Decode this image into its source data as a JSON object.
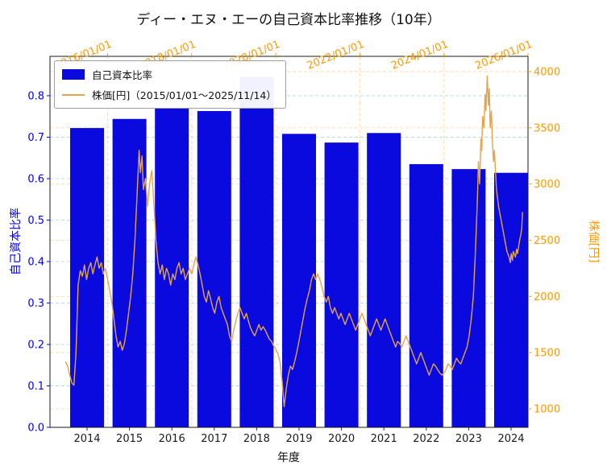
{
  "chart_data": {
    "type": "bar+line",
    "title": "ディー・エヌ・エーの自己資本比率推移（10年）",
    "xlabel": "年度",
    "ylabel_left": "自己資本比率",
    "ylabel_right": "株価[円]",
    "grid": true,
    "grid_colors": {
      "left": "#add8e6",
      "right": "#ffd9a3"
    },
    "categories": [
      2014,
      2015,
      2016,
      2017,
      2018,
      2019,
      2020,
      2021,
      2022,
      2023,
      2024
    ],
    "bar_series": {
      "name": "自己資本比率",
      "color": "#0a0ade",
      "values": [
        0.722,
        0.744,
        0.77,
        0.763,
        0.845,
        0.708,
        0.687,
        0.71,
        0.635,
        0.623,
        0.614
      ]
    },
    "line_series": {
      "name": "株価[円]（2015/01/01～2025/11/14）",
      "color": "#e6a44a",
      "points": [
        [
          2015.0,
          1420
        ],
        [
          2015.05,
          1380
        ],
        [
          2015.1,
          1300
        ],
        [
          2015.15,
          1230
        ],
        [
          2015.2,
          1210
        ],
        [
          2015.25,
          1500
        ],
        [
          2015.3,
          2100
        ],
        [
          2015.35,
          2230
        ],
        [
          2015.4,
          2180
        ],
        [
          2015.45,
          2280
        ],
        [
          2015.5,
          2150
        ],
        [
          2015.55,
          2250
        ],
        [
          2015.6,
          2300
        ],
        [
          2015.65,
          2200
        ],
        [
          2015.7,
          2280
        ],
        [
          2015.75,
          2350
        ],
        [
          2015.8,
          2250
        ],
        [
          2015.85,
          2300
        ],
        [
          2015.9,
          2200
        ],
        [
          2015.95,
          2250
        ],
        [
          2016.0,
          2150
        ],
        [
          2016.05,
          2050
        ],
        [
          2016.1,
          1950
        ],
        [
          2016.15,
          1800
        ],
        [
          2016.2,
          1650
        ],
        [
          2016.25,
          1550
        ],
        [
          2016.3,
          1600
        ],
        [
          2016.35,
          1520
        ],
        [
          2016.4,
          1580
        ],
        [
          2016.45,
          1700
        ],
        [
          2016.5,
          1850
        ],
        [
          2016.55,
          2000
        ],
        [
          2016.6,
          2200
        ],
        [
          2016.65,
          2500
        ],
        [
          2016.7,
          2900
        ],
        [
          2016.75,
          3300
        ],
        [
          2016.78,
          3100
        ],
        [
          2016.82,
          3250
        ],
        [
          2016.85,
          2950
        ],
        [
          2016.9,
          3050
        ],
        [
          2016.95,
          2800
        ],
        [
          2017.0,
          3000
        ],
        [
          2017.05,
          3120
        ],
        [
          2017.08,
          2950
        ],
        [
          2017.12,
          2700
        ],
        [
          2017.15,
          2500
        ],
        [
          2017.2,
          2300
        ],
        [
          2017.25,
          2200
        ],
        [
          2017.3,
          2280
        ],
        [
          2017.35,
          2150
        ],
        [
          2017.4,
          2250
        ],
        [
          2017.45,
          2200
        ],
        [
          2017.5,
          2100
        ],
        [
          2017.55,
          2200
        ],
        [
          2017.6,
          2150
        ],
        [
          2017.65,
          2250
        ],
        [
          2017.7,
          2300
        ],
        [
          2017.75,
          2200
        ],
        [
          2017.8,
          2250
        ],
        [
          2017.85,
          2150
        ],
        [
          2017.9,
          2200
        ],
        [
          2017.95,
          2250
        ],
        [
          2018.0,
          2200
        ],
        [
          2018.05,
          2280
        ],
        [
          2018.1,
          2350
        ],
        [
          2018.15,
          2280
        ],
        [
          2018.2,
          2200
        ],
        [
          2018.25,
          2100
        ],
        [
          2018.3,
          2000
        ],
        [
          2018.35,
          1950
        ],
        [
          2018.4,
          2050
        ],
        [
          2018.45,
          1980
        ],
        [
          2018.5,
          1900
        ],
        [
          2018.55,
          1850
        ],
        [
          2018.6,
          1950
        ],
        [
          2018.65,
          2000
        ],
        [
          2018.7,
          1900
        ],
        [
          2018.75,
          1850
        ],
        [
          2018.8,
          1800
        ],
        [
          2018.85,
          1750
        ],
        [
          2018.9,
          1650
        ],
        [
          2018.95,
          1600
        ],
        [
          2019.0,
          1700
        ],
        [
          2019.05,
          1780
        ],
        [
          2019.1,
          1850
        ],
        [
          2019.15,
          1900
        ],
        [
          2019.2,
          1850
        ],
        [
          2019.25,
          1800
        ],
        [
          2019.3,
          1850
        ],
        [
          2019.35,
          1780
        ],
        [
          2019.4,
          1720
        ],
        [
          2019.45,
          1680
        ],
        [
          2019.5,
          1650
        ],
        [
          2019.55,
          1700
        ],
        [
          2019.6,
          1750
        ],
        [
          2019.65,
          1700
        ],
        [
          2019.7,
          1730
        ],
        [
          2019.75,
          1700
        ],
        [
          2019.8,
          1660
        ],
        [
          2019.85,
          1620
        ],
        [
          2019.9,
          1600
        ],
        [
          2019.95,
          1560
        ],
        [
          2020.0,
          1530
        ],
        [
          2020.05,
          1490
        ],
        [
          2020.1,
          1420
        ],
        [
          2020.15,
          1250
        ],
        [
          2020.2,
          1020
        ],
        [
          2020.25,
          1180
        ],
        [
          2020.3,
          1300
        ],
        [
          2020.35,
          1380
        ],
        [
          2020.4,
          1350
        ],
        [
          2020.45,
          1420
        ],
        [
          2020.5,
          1500
        ],
        [
          2020.55,
          1600
        ],
        [
          2020.6,
          1700
        ],
        [
          2020.65,
          1800
        ],
        [
          2020.7,
          1900
        ],
        [
          2020.75,
          1980
        ],
        [
          2020.8,
          2050
        ],
        [
          2020.85,
          2150
        ],
        [
          2020.9,
          2200
        ],
        [
          2020.95,
          2150
        ],
        [
          2021.0,
          2200
        ],
        [
          2021.05,
          2150
        ],
        [
          2021.1,
          2080
        ],
        [
          2021.15,
          2000
        ],
        [
          2021.2,
          1950
        ],
        [
          2021.25,
          2000
        ],
        [
          2021.3,
          1900
        ],
        [
          2021.35,
          1850
        ],
        [
          2021.4,
          1900
        ],
        [
          2021.45,
          1850
        ],
        [
          2021.5,
          1800
        ],
        [
          2021.55,
          1850
        ],
        [
          2021.6,
          1800
        ],
        [
          2021.65,
          1750
        ],
        [
          2021.7,
          1800
        ],
        [
          2021.75,
          1850
        ],
        [
          2021.8,
          1800
        ],
        [
          2021.85,
          1750
        ],
        [
          2021.9,
          1700
        ],
        [
          2021.95,
          1750
        ],
        [
          2022.0,
          1800
        ],
        [
          2022.05,
          1850
        ],
        [
          2022.1,
          1800
        ],
        [
          2022.15,
          1750
        ],
        [
          2022.2,
          1700
        ],
        [
          2022.25,
          1650
        ],
        [
          2022.3,
          1700
        ],
        [
          2022.35,
          1750
        ],
        [
          2022.4,
          1800
        ],
        [
          2022.45,
          1750
        ],
        [
          2022.5,
          1700
        ],
        [
          2022.55,
          1750
        ],
        [
          2022.6,
          1800
        ],
        [
          2022.65,
          1750
        ],
        [
          2022.7,
          1700
        ],
        [
          2022.75,
          1650
        ],
        [
          2022.8,
          1600
        ],
        [
          2022.85,
          1550
        ],
        [
          2022.9,
          1600
        ],
        [
          2022.95,
          1580
        ],
        [
          2023.0,
          1550
        ],
        [
          2023.05,
          1600
        ],
        [
          2023.1,
          1650
        ],
        [
          2023.15,
          1600
        ],
        [
          2023.2,
          1550
        ],
        [
          2023.25,
          1500
        ],
        [
          2023.3,
          1450
        ],
        [
          2023.35,
          1400
        ],
        [
          2023.4,
          1450
        ],
        [
          2023.45,
          1500
        ],
        [
          2023.5,
          1450
        ],
        [
          2023.55,
          1400
        ],
        [
          2023.6,
          1350
        ],
        [
          2023.65,
          1300
        ],
        [
          2023.7,
          1350
        ],
        [
          2023.75,
          1400
        ],
        [
          2023.8,
          1380
        ],
        [
          2023.85,
          1350
        ],
        [
          2023.9,
          1320
        ],
        [
          2023.95,
          1300
        ],
        [
          2024.0,
          1320
        ],
        [
          2024.05,
          1350
        ],
        [
          2024.1,
          1400
        ],
        [
          2024.15,
          1380
        ],
        [
          2024.2,
          1350
        ],
        [
          2024.25,
          1400
        ],
        [
          2024.3,
          1450
        ],
        [
          2024.35,
          1420
        ],
        [
          2024.4,
          1400
        ],
        [
          2024.45,
          1450
        ],
        [
          2024.5,
          1500
        ],
        [
          2024.55,
          1550
        ],
        [
          2024.6,
          1650
        ],
        [
          2024.65,
          1800
        ],
        [
          2024.7,
          2000
        ],
        [
          2024.75,
          2400
        ],
        [
          2024.8,
          2900
        ],
        [
          2024.82,
          3200
        ],
        [
          2024.85,
          3000
        ],
        [
          2024.88,
          3400
        ],
        [
          2024.9,
          3300
        ],
        [
          2024.92,
          3600
        ],
        [
          2024.95,
          3500
        ],
        [
          2024.98,
          3800
        ],
        [
          2025.0,
          3650
        ],
        [
          2025.03,
          3960
        ],
        [
          2025.06,
          3700
        ],
        [
          2025.08,
          3850
        ],
        [
          2025.1,
          3500
        ],
        [
          2025.13,
          3650
        ],
        [
          2025.15,
          3400
        ],
        [
          2025.18,
          3200
        ],
        [
          2025.2,
          3300
        ],
        [
          2025.23,
          3100
        ],
        [
          2025.25,
          2950
        ],
        [
          2025.3,
          2800
        ],
        [
          2025.35,
          2700
        ],
        [
          2025.4,
          2600
        ],
        [
          2025.45,
          2500
        ],
        [
          2025.5,
          2400
        ],
        [
          2025.55,
          2350
        ],
        [
          2025.58,
          2300
        ],
        [
          2025.6,
          2380
        ],
        [
          2025.63,
          2320
        ],
        [
          2025.65,
          2400
        ],
        [
          2025.7,
          2350
        ],
        [
          2025.73,
          2420
        ],
        [
          2025.75,
          2380
        ],
        [
          2025.78,
          2450
        ],
        [
          2025.8,
          2500
        ],
        [
          2025.83,
          2550
        ],
        [
          2025.85,
          2600
        ],
        [
          2025.87,
          2750
        ]
      ]
    },
    "axes": {
      "left": {
        "label": "自己資本比率",
        "color": "#0000ff",
        "ticks": [
          0.0,
          0.1,
          0.2,
          0.3,
          0.4,
          0.5,
          0.6,
          0.7,
          0.8
        ],
        "range": [
          0,
          0.895
        ]
      },
      "right": {
        "label": "株価[円]",
        "color": "#ff9900",
        "ticks": [
          1000,
          1500,
          2000,
          2500,
          3000,
          3500,
          4000
        ],
        "range": [
          835,
          4136
        ]
      },
      "bottom": {
        "label": "年度",
        "color": "#111111"
      },
      "top": {
        "color": "#ff9900",
        "ticks": [
          "2016/01/01",
          "2018/01/01",
          "2020/01/01",
          "2022/01/01",
          "2024/01/01",
          "2026/01/01"
        ],
        "tick_years": [
          2016,
          2018,
          2020,
          2022,
          2024,
          2026
        ],
        "range": [
          2014.63,
          2026.0
        ]
      }
    },
    "legend": {
      "position": "upper left",
      "items": [
        {
          "label": "自己資本比率",
          "type": "patch"
        },
        {
          "label": "株価[円]（2015/01/01～2025/11/14）",
          "type": "line"
        }
      ]
    }
  }
}
